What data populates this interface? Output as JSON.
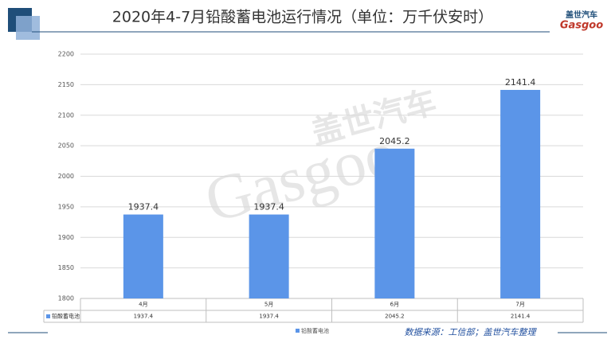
{
  "chart_data": {
    "type": "bar",
    "title": "2020年4-7月铅酸蓄电池运行情况（单位：万千伏安时）",
    "categories": [
      "4月",
      "5月",
      "6月",
      "7月"
    ],
    "series": [
      {
        "name": "铅酸蓄电池",
        "color": "#5b95e8",
        "values": [
          1937.4,
          1937.4,
          2045.2,
          2141.4
        ]
      }
    ],
    "ylim": [
      1800,
      2200
    ],
    "yticks": [
      1800,
      1850,
      1900,
      1950,
      2000,
      2050,
      2100,
      2150,
      2200
    ],
    "grid": true,
    "legend": "bottom",
    "source": "数据来源：工信部；盖世汽车整理",
    "logo": {
      "name": "盖世汽车",
      "brand": "Gasgoo"
    }
  }
}
